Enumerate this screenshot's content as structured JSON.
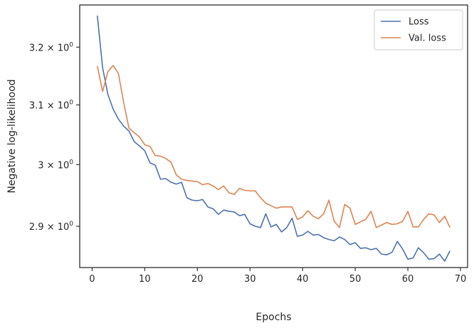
{
  "chart_data": {
    "type": "line",
    "xlabel": "Epochs",
    "ylabel": "Negative log-likelihood",
    "xlim": [
      -2.35,
      71.35
    ],
    "ylim": [
      2.835,
      3.275
    ],
    "yscale": "log",
    "grid": false,
    "legend_position": "top-right",
    "x_ticks": [
      0,
      10,
      20,
      30,
      40,
      50,
      60,
      70
    ],
    "x_tick_labels": [
      "0",
      "10",
      "20",
      "30",
      "40",
      "50",
      "60",
      "70"
    ],
    "y_ticks": [
      2.9,
      3.0,
      3.1,
      3.2
    ],
    "y_tick_labels": [
      {
        "base": "2.9 × 10",
        "exp": "0"
      },
      {
        "base": "3 × 10",
        "exp": "0"
      },
      {
        "base": "3.1 × 10",
        "exp": "0"
      },
      {
        "base": "3.2 × 10",
        "exp": "0"
      }
    ],
    "x": [
      1,
      2,
      3,
      4,
      5,
      6,
      7,
      8,
      9,
      10,
      11,
      12,
      13,
      14,
      15,
      16,
      17,
      18,
      19,
      20,
      21,
      22,
      23,
      24,
      25,
      26,
      27,
      28,
      29,
      30,
      31,
      32,
      33,
      34,
      35,
      36,
      37,
      38,
      39,
      40,
      41,
      42,
      43,
      44,
      45,
      46,
      47,
      48,
      49,
      50,
      51,
      52,
      53,
      54,
      55,
      56,
      57,
      58,
      59,
      60,
      61,
      62,
      63,
      64,
      65,
      66,
      67,
      68
    ],
    "series": [
      {
        "name": "Loss",
        "color": "#4c72b0",
        "values": [
          3.256,
          3.164,
          3.118,
          3.093,
          3.076,
          3.064,
          3.056,
          3.038,
          3.031,
          3.023,
          3.003,
          2.999,
          2.976,
          2.977,
          2.971,
          2.968,
          2.971,
          2.946,
          2.942,
          2.941,
          2.943,
          2.931,
          2.928,
          2.919,
          2.926,
          2.924,
          2.923,
          2.917,
          2.919,
          2.904,
          2.9,
          2.898,
          2.92,
          2.899,
          2.903,
          2.891,
          2.898,
          2.913,
          2.884,
          2.886,
          2.892,
          2.886,
          2.887,
          2.882,
          2.879,
          2.877,
          2.883,
          2.879,
          2.871,
          2.874,
          2.865,
          2.866,
          2.863,
          2.865,
          2.856,
          2.855,
          2.859,
          2.876,
          2.864,
          2.848,
          2.85,
          2.866,
          2.858,
          2.848,
          2.849,
          2.856,
          2.845,
          2.861
        ]
      },
      {
        "name": "Val. loss",
        "color": "#dd8452",
        "values": [
          3.167,
          3.123,
          3.157,
          3.168,
          3.154,
          3.104,
          3.061,
          3.053,
          3.046,
          3.033,
          3.03,
          3.015,
          3.014,
          3.01,
          3.004,
          2.983,
          2.976,
          2.974,
          2.973,
          2.972,
          2.967,
          2.969,
          2.965,
          2.959,
          2.965,
          2.954,
          2.951,
          2.961,
          2.958,
          2.957,
          2.957,
          2.946,
          2.937,
          2.933,
          2.929,
          2.931,
          2.931,
          2.931,
          2.911,
          2.915,
          2.925,
          2.916,
          2.912,
          2.92,
          2.942,
          2.908,
          2.898,
          2.935,
          2.929,
          2.903,
          2.907,
          2.911,
          2.924,
          2.898,
          2.902,
          2.906,
          2.903,
          2.904,
          2.908,
          2.924,
          2.899,
          2.899,
          2.911,
          2.92,
          2.918,
          2.906,
          2.916,
          2.898
        ]
      }
    ]
  }
}
